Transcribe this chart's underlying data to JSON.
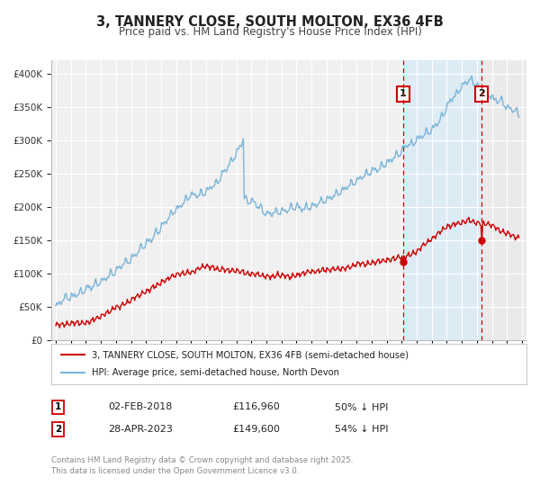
{
  "title": "3, TANNERY CLOSE, SOUTH MOLTON, EX36 4FB",
  "subtitle": "Price paid vs. HM Land Registry's House Price Index (HPI)",
  "hpi_label": "HPI: Average price, semi-detached house, North Devon",
  "price_label": "3, TANNERY CLOSE, SOUTH MOLTON, EX36 4FB (semi-detached house)",
  "hpi_color": "#7ab4d8",
  "price_color": "#cc0000",
  "vline_color": "#cc0000",
  "shade_color": "#d6eaf8",
  "annotation1": {
    "label": "1",
    "date": "02-FEB-2018",
    "price": "£116,960",
    "pct": "50% ↓ HPI"
  },
  "annotation2": {
    "label": "2",
    "date": "28-APR-2023",
    "price": "£149,600",
    "pct": "54% ↓ HPI"
  },
  "footer": "Contains HM Land Registry data © Crown copyright and database right 2025.\nThis data is licensed under the Open Government Licence v3.0.",
  "ylim": [
    0,
    420000
  ],
  "xlim_start": 1994.7,
  "xlim_end": 2026.3,
  "plot_bg": "#f0f0f0",
  "t1": 2018.085,
  "t2": 2023.322,
  "y1_price": 116960,
  "y2_price": 149600
}
